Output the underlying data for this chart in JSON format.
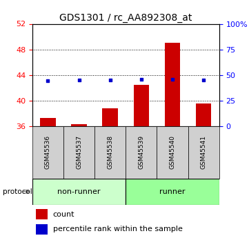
{
  "title": "GDS1301 / rc_AA892308_at",
  "categories": [
    "GSM45536",
    "GSM45537",
    "GSM45538",
    "GSM45539",
    "GSM45540",
    "GSM45541"
  ],
  "count_values": [
    37.3,
    36.3,
    38.8,
    42.5,
    49.0,
    39.5
  ],
  "percentile_values": [
    44.7,
    44.9,
    45.2,
    45.8,
    45.5,
    44.8
  ],
  "ylim_left": [
    36,
    52
  ],
  "ylim_right": [
    0,
    100
  ],
  "yticks_left": [
    36,
    40,
    44,
    48,
    52
  ],
  "yticks_right": [
    0,
    25,
    50,
    75,
    100
  ],
  "ytick_labels_right": [
    "0",
    "25",
    "50",
    "75",
    "100%"
  ],
  "bar_color": "#cc0000",
  "dot_color": "#0000cc",
  "bar_width": 0.5,
  "group_labels": [
    "non-runner",
    "runner"
  ],
  "group_ranges": [
    [
      0,
      3
    ],
    [
      3,
      6
    ]
  ],
  "group_colors": [
    "#ccffcc",
    "#99ff99"
  ],
  "protocol_label": "protocol",
  "legend_count": "count",
  "legend_percentile": "percentile rank within the sample",
  "grid_yticks": [
    40,
    44,
    48
  ],
  "background_color": "#ffffff",
  "tick_box_color": "#d0d0d0"
}
